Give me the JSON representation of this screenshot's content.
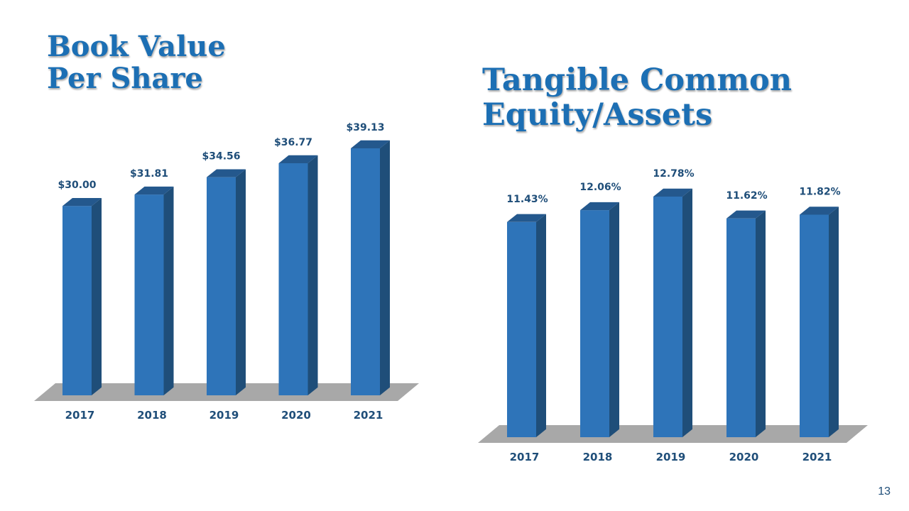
{
  "charts": {
    "left": {
      "title_line1": "Book Value",
      "title_line2": "Per Share"
    },
    "right": {
      "title_line1": "Tangible Common",
      "title_line2": "Equity/Assets"
    }
  },
  "page_number": "13",
  "colors": {
    "title": "#1c6fb4",
    "bar_front": "#2e74b9",
    "bar_side": "#1f4e79",
    "bar_top": "#24588d",
    "floor": "#a8a8a8",
    "label": "#1f4e79"
  },
  "chart_data": [
    {
      "type": "bar",
      "title": "Book Value Per Share",
      "categories": [
        "2017",
        "2018",
        "2019",
        "2020",
        "2021"
      ],
      "values": [
        30.0,
        31.81,
        34.56,
        36.77,
        39.13
      ],
      "value_labels": [
        "$30.00",
        "$31.81",
        "$34.56",
        "$36.77",
        "$39.13"
      ],
      "grid": false,
      "legend": "none"
    },
    {
      "type": "bar",
      "title": "Tangible Common Equity/Assets",
      "categories": [
        "2017",
        "2018",
        "2019",
        "2020",
        "2021"
      ],
      "values": [
        11.43,
        12.06,
        12.78,
        11.62,
        11.82
      ],
      "value_labels": [
        "11.43%",
        "12.06%",
        "12.78%",
        "11.62%",
        "11.82%"
      ],
      "grid": false,
      "legend": "none"
    }
  ]
}
